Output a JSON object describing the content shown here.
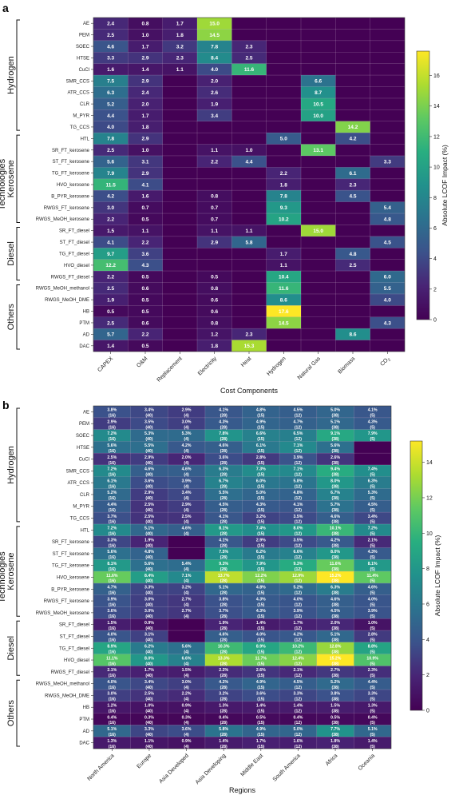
{
  "chart_data": [
    {
      "type": "heatmap",
      "panel": "a",
      "xlabel": "Cost Components",
      "ylabel": "Technologies",
      "colorbar_label": "Absolute LCOF Impact (%)",
      "colorbar_ticks": [
        0,
        2,
        4,
        6,
        8,
        10,
        12,
        14,
        16
      ],
      "vmin": 0,
      "vmax": 17.6,
      "colormap": "viridis",
      "background_color": "#440154",
      "columns": [
        "CAPEX",
        "O&M",
        "Replacement",
        "Electricity",
        "Heat",
        "Hydrogen",
        "Natural Gas",
        "Biomass",
        "CO₂"
      ],
      "rows": [
        "AE",
        "PEM",
        "SOEC",
        "HTSE",
        "CuCl",
        "SMR_CCS",
        "ATR_CCS",
        "CLR",
        "M_PYR",
        "TG_CCS",
        "HTL",
        "SR_FT_kerosene",
        "ST_FT_kerosene",
        "TG_FT_kerosene",
        "HVO_kerosene",
        "B_PYR_kerosene",
        "RWGS_FT_kerosene",
        "RWGS_MeOH_kerosene",
        "SR_FT_diesel",
        "ST_FT_diesel",
        "TG_FT_diesel",
        "HVO_diesel",
        "RWGS_FT_diesel",
        "RWGS_MeOH_methanol",
        "RWGS_MeOH_DME",
        "HB",
        "PTM",
        "AD",
        "DAC"
      ],
      "groups": [
        {
          "name": "Hydrogen",
          "start": 0,
          "end": 9
        },
        {
          "name": "Kerosene",
          "start": 10,
          "end": 17
        },
        {
          "name": "Diesel",
          "start": 18,
          "end": 22
        },
        {
          "name": "Others",
          "start": 23,
          "end": 28
        }
      ],
      "values": [
        [
          2.4,
          0.8,
          1.7,
          15.0,
          null,
          null,
          null,
          null,
          null
        ],
        [
          2.5,
          1.0,
          1.8,
          14.5,
          null,
          null,
          null,
          null,
          null
        ],
        [
          4.6,
          1.7,
          3.2,
          7.8,
          2.3,
          null,
          null,
          null,
          null
        ],
        [
          3.3,
          2.9,
          2.3,
          8.4,
          2.5,
          null,
          null,
          null,
          null
        ],
        [
          1.6,
          1.4,
          1.1,
          4.0,
          11.6,
          null,
          null,
          null,
          null
        ],
        [
          7.5,
          2.9,
          null,
          2.0,
          null,
          null,
          6.6,
          null,
          null
        ],
        [
          6.3,
          2.4,
          null,
          2.6,
          null,
          null,
          8.7,
          null,
          null
        ],
        [
          5.2,
          2.0,
          null,
          1.9,
          null,
          null,
          10.5,
          null,
          null
        ],
        [
          4.4,
          1.7,
          null,
          3.4,
          null,
          null,
          10.0,
          null,
          null
        ],
        [
          4.0,
          1.8,
          null,
          null,
          null,
          null,
          null,
          14.2,
          null
        ],
        [
          7.8,
          2.9,
          null,
          null,
          null,
          5.0,
          null,
          4.2,
          null
        ],
        [
          2.5,
          1.0,
          null,
          1.1,
          1.0,
          null,
          13.1,
          null,
          null
        ],
        [
          5.6,
          3.1,
          null,
          2.2,
          4.4,
          null,
          null,
          null,
          3.3
        ],
        [
          7.9,
          2.9,
          null,
          null,
          null,
          2.2,
          null,
          6.1,
          null
        ],
        [
          11.5,
          4.1,
          null,
          null,
          null,
          1.8,
          null,
          2.3,
          null
        ],
        [
          4.2,
          1.6,
          null,
          0.8,
          null,
          7.8,
          null,
          4.5,
          null
        ],
        [
          3.0,
          0.7,
          null,
          0.7,
          null,
          9.3,
          null,
          null,
          5.4
        ],
        [
          2.2,
          0.5,
          null,
          0.7,
          null,
          10.2,
          null,
          null,
          4.8
        ],
        [
          1.5,
          1.1,
          null,
          1.1,
          1.1,
          null,
          15.0,
          null,
          null
        ],
        [
          4.1,
          2.2,
          null,
          2.9,
          5.8,
          null,
          null,
          null,
          4.5
        ],
        [
          9.7,
          3.6,
          null,
          null,
          null,
          1.7,
          null,
          4.8,
          null
        ],
        [
          12.2,
          4.3,
          null,
          null,
          null,
          1.1,
          null,
          2.5,
          null
        ],
        [
          2.2,
          0.5,
          null,
          0.5,
          null,
          10.4,
          null,
          null,
          6.0
        ],
        [
          2.5,
          0.6,
          null,
          0.8,
          null,
          11.6,
          null,
          null,
          5.5
        ],
        [
          1.9,
          0.5,
          null,
          0.6,
          null,
          8.6,
          null,
          null,
          4.0
        ],
        [
          0.5,
          0.5,
          null,
          0.6,
          null,
          17.6,
          null,
          null,
          null
        ],
        [
          2.5,
          0.6,
          null,
          0.8,
          null,
          14.5,
          null,
          null,
          4.3
        ],
        [
          5.7,
          2.2,
          null,
          1.2,
          2.3,
          null,
          null,
          8.6,
          null
        ],
        [
          1.4,
          0.5,
          null,
          1.8,
          15.3,
          null,
          null,
          null,
          null
        ]
      ]
    },
    {
      "type": "heatmap",
      "panel": "b",
      "xlabel": "Regions",
      "ylabel": "Technologies",
      "colorbar_label": "Absolute LCOF Impact (%)",
      "colorbar_ticks": [
        0,
        2,
        4,
        6,
        8,
        10,
        12,
        14
      ],
      "vmin": 0,
      "vmax": 15.2,
      "colormap": "viridis",
      "background_color": "#440154",
      "columns": [
        "North America",
        "Europe",
        "Asia Developed",
        "Asia Developing",
        "Middle East",
        "South America",
        "Africa",
        "Oceania"
      ],
      "rows": [
        "AE",
        "PEM",
        "SOEC",
        "HTSE",
        "CuCl",
        "SMR_CCS",
        "ATR_CCS",
        "CLR",
        "M_PYR",
        "TG_CCS",
        "HTL",
        "SR_FT_kerosene",
        "ST_FT_kerosene",
        "TG_FT_kerosene",
        "HVO_kerosene",
        "B_PYR_kerosene",
        "RWGS_FT_kerosene",
        "RWGS_MeOH_kerosene",
        "SR_FT_diesel",
        "ST_FT_diesel",
        "TG_FT_diesel",
        "HVO_diesel",
        "RWGS_FT_diesel",
        "RWGS_MeOH_methanol",
        "RWGS_MeOH_DME",
        "HB",
        "PTM",
        "AD",
        "DAC"
      ],
      "groups": [
        {
          "name": "Hydrogen",
          "start": 0,
          "end": 9
        },
        {
          "name": "Kerosene",
          "start": 10,
          "end": 17
        },
        {
          "name": "Diesel",
          "start": 18,
          "end": 22
        },
        {
          "name": "Others",
          "start": 23,
          "end": 28
        }
      ],
      "counts": [
        "(16)",
        "(40)",
        "(4)",
        "(28)",
        "(15)",
        "(12)",
        "(38)",
        "(5)"
      ],
      "values": [
        [
          3.8,
          3.4,
          2.9,
          4.1,
          4.8,
          4.5,
          5.0,
          4.1
        ],
        [
          2.9,
          3.5,
          3.0,
          4.3,
          4.9,
          4.7,
          5.1,
          4.3
        ],
        [
          7.2,
          5.3,
          5.3,
          7.8,
          6.6,
          6.5,
          9.1,
          7.9
        ],
        [
          5.6,
          5.5,
          4.2,
          4.6,
          6.1,
          7.1,
          5.6,
          null
        ],
        [
          2.5,
          2.9,
          2.0,
          3.6,
          2.8,
          3.9,
          2.6,
          null
        ],
        [
          7.2,
          4.6,
          4.6,
          6.3,
          7.3,
          7.1,
          9.4,
          7.4
        ],
        [
          6.1,
          3.6,
          3.9,
          6.7,
          6.0,
          5.8,
          8.0,
          6.3
        ],
        [
          5.2,
          2.9,
          3.4,
          5.5,
          5.0,
          4.8,
          6.7,
          5.3
        ],
        [
          4.4,
          2.5,
          2.9,
          4.5,
          4.3,
          4.1,
          5.7,
          4.5
        ],
        [
          3.7,
          2.5,
          2.5,
          4.1,
          3.2,
          3.5,
          4.6,
          3.4
        ],
        [
          7.2,
          5.1,
          4.6,
          8.1,
          7.4,
          8.0,
          10.1,
          7.2
        ],
        [
          3.3,
          1.9,
          null,
          4.1,
          2.9,
          3.5,
          4.2,
          2.1
        ],
        [
          5.6,
          4.8,
          null,
          7.5,
          6.2,
          6.6,
          8.0,
          4.3
        ],
        [
          8.1,
          5.6,
          5.4,
          9.3,
          7.9,
          9.3,
          11.6,
          8.1
        ],
        [
          11.6,
          8.4,
          7.1,
          13.7,
          12.2,
          12.9,
          15.2,
          11.4
        ],
        [
          4.7,
          3.3,
          3.2,
          5.1,
          4.8,
          5.2,
          6.3,
          4.6
        ],
        [
          3.9,
          3.0,
          2.7,
          3.8,
          4.3,
          4.0,
          4.6,
          4.0
        ],
        [
          3.6,
          3.0,
          2.7,
          3.7,
          4.3,
          3.9,
          4.5,
          3.9
        ],
        [
          1.5,
          0.9,
          null,
          1.9,
          1.4,
          1.7,
          2.0,
          1.0
        ],
        [
          4.0,
          3.1,
          null,
          4.6,
          4.0,
          4.2,
          5.1,
          2.8
        ],
        [
          8.9,
          6.2,
          5.6,
          10.3,
          8.9,
          10.2,
          12.8,
          8.8
        ],
        [
          11.1,
          8.0,
          6.6,
          13.3,
          11.7,
          12.4,
          15.2,
          10.9
        ],
        [
          2.1,
          1.7,
          1.5,
          2.2,
          2.6,
          2.1,
          2.7,
          2.3
        ],
        [
          4.0,
          3.4,
          3.0,
          4.2,
          4.9,
          4.5,
          5.2,
          4.4
        ],
        [
          3.0,
          2.5,
          2.2,
          3.2,
          3.6,
          3.3,
          3.8,
          3.3
        ],
        [
          1.2,
          1.0,
          0.9,
          1.3,
          1.4,
          1.4,
          1.5,
          1.3
        ],
        [
          0.4,
          0.3,
          0.3,
          0.4,
          0.5,
          0.4,
          0.5,
          0.4
        ],
        [
          5.1,
          3.3,
          3.6,
          5.8,
          4.9,
          5.0,
          7.7,
          5.1
        ],
        [
          1.3,
          1.1,
          0.9,
          1.4,
          1.7,
          1.6,
          1.8,
          1.4
        ]
      ]
    }
  ]
}
